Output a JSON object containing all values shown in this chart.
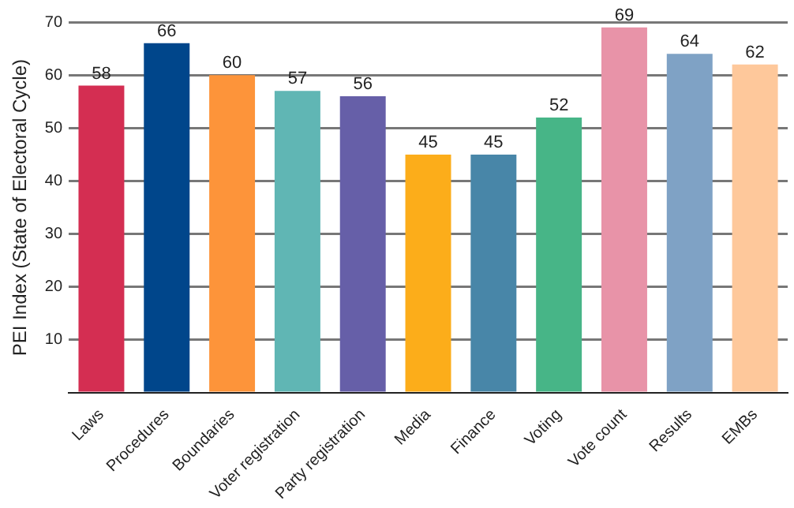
{
  "chart_data": {
    "type": "bar",
    "ylabel": "PEI Index (State of Electoral Cycle)",
    "categories": [
      "Laws",
      "Procedures",
      "Boundaries",
      "Voter registration",
      "Party registration",
      "Media",
      "Finance",
      "Voting",
      "Vote count",
      "Results",
      "EMBs"
    ],
    "values": [
      58,
      66,
      60,
      57,
      56,
      45,
      45,
      52,
      69,
      64,
      62
    ],
    "colors": [
      "#d42e52",
      "#00468b",
      "#fd943a",
      "#60b6b4",
      "#665fa8",
      "#fcad1a",
      "#4886a8",
      "#47b587",
      "#e893a8",
      "#7fa2c5",
      "#fec89b"
    ],
    "ylim": [
      0,
      70
    ],
    "yticks": [
      {
        "value": 0,
        "label": null
      },
      10,
      20,
      30,
      40,
      50,
      60,
      70
    ],
    "grid": "y",
    "data_labels": true,
    "legend": false
  }
}
